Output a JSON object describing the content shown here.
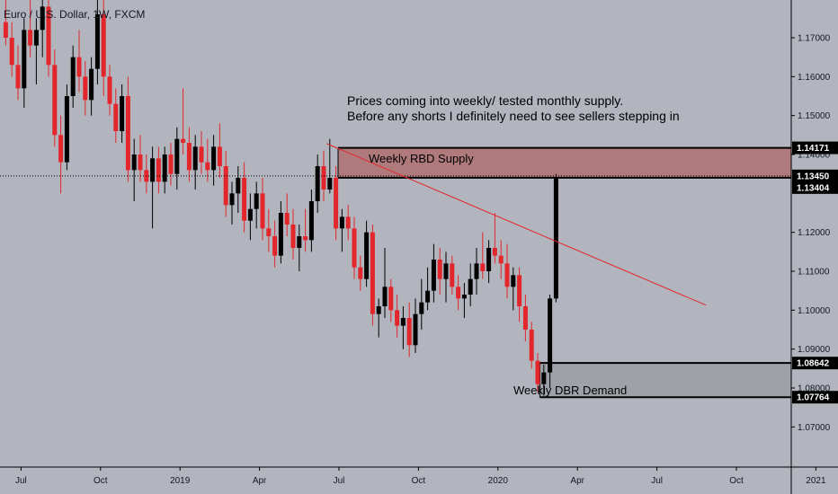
{
  "chart_data": {
    "type": "candlestick",
    "title": "Euro / U.S. Dollar, 1W, FXCM",
    "symbol": "EURUSD",
    "timeframe": "1W",
    "broker": "FXCM",
    "ylim": [
      1.062,
      1.179
    ],
    "y_ticks": [
      {
        "value": 1.17,
        "label": "1.17000"
      },
      {
        "value": 1.16,
        "label": "1.16000"
      },
      {
        "value": 1.15,
        "label": "1.15000"
      },
      {
        "value": 1.14,
        "label": "1.14000"
      },
      {
        "value": 1.12,
        "label": "1.12000"
      },
      {
        "value": 1.11,
        "label": "1.11000"
      },
      {
        "value": 1.1,
        "label": "1.10000"
      },
      {
        "value": 1.09,
        "label": "1.09000"
      },
      {
        "value": 1.08,
        "label": "1.08000"
      },
      {
        "value": 1.07,
        "label": "1.07000"
      }
    ],
    "x_ticks": [
      {
        "index": 3,
        "label": "Jul"
      },
      {
        "index": 16,
        "label": "Oct"
      },
      {
        "index": 29,
        "label": "2019"
      },
      {
        "index": 42,
        "label": "Apr"
      },
      {
        "index": 55,
        "label": "Jul"
      },
      {
        "index": 68,
        "label": "Oct"
      },
      {
        "index": 81,
        "label": "2020"
      },
      {
        "index": 94,
        "label": "Apr"
      },
      {
        "index": 107,
        "label": "Jul"
      },
      {
        "index": 120,
        "label": "Oct"
      },
      {
        "index": 133,
        "label": "2021"
      }
    ],
    "price_tags": [
      {
        "value": 1.14171,
        "label": "1.14171"
      },
      {
        "value": 1.1345,
        "label": "1.13450"
      },
      {
        "value": 1.13404,
        "label": "1.13404"
      },
      {
        "value": 1.08642,
        "label": "1.08642"
      },
      {
        "value": 1.07764,
        "label": "1.07764"
      }
    ],
    "current_price": 1.1345,
    "candles": [
      [
        1.174,
        1.181,
        1.168,
        1.17
      ],
      [
        1.17,
        1.174,
        1.16,
        1.163
      ],
      [
        1.163,
        1.168,
        1.154,
        1.157
      ],
      [
        1.157,
        1.175,
        1.152,
        1.172
      ],
      [
        1.172,
        1.181,
        1.165,
        1.168
      ],
      [
        1.168,
        1.175,
        1.158,
        1.172
      ],
      [
        1.172,
        1.182,
        1.165,
        1.178
      ],
      [
        1.178,
        1.181,
        1.16,
        1.163
      ],
      [
        1.163,
        1.167,
        1.142,
        1.145
      ],
      [
        1.145,
        1.15,
        1.13,
        1.138
      ],
      [
        1.138,
        1.158,
        1.136,
        1.155
      ],
      [
        1.155,
        1.168,
        1.152,
        1.165
      ],
      [
        1.165,
        1.172,
        1.156,
        1.16
      ],
      [
        1.16,
        1.164,
        1.15,
        1.154
      ],
      [
        1.154,
        1.165,
        1.15,
        1.162
      ],
      [
        1.162,
        1.18,
        1.158,
        1.176
      ],
      [
        1.176,
        1.182,
        1.155,
        1.16
      ],
      [
        1.16,
        1.163,
        1.15,
        1.153
      ],
      [
        1.153,
        1.157,
        1.143,
        1.146
      ],
      [
        1.146,
        1.158,
        1.143,
        1.155
      ],
      [
        1.155,
        1.16,
        1.133,
        1.136
      ],
      [
        1.136,
        1.144,
        1.128,
        1.14
      ],
      [
        1.14,
        1.145,
        1.133,
        1.136
      ],
      [
        1.136,
        1.14,
        1.13,
        1.133
      ],
      [
        1.133,
        1.142,
        1.121,
        1.139
      ],
      [
        1.139,
        1.142,
        1.13,
        1.133
      ],
      [
        1.133,
        1.142,
        1.13,
        1.14
      ],
      [
        1.14,
        1.143,
        1.132,
        1.135
      ],
      [
        1.135,
        1.147,
        1.131,
        1.144
      ],
      [
        1.144,
        1.157,
        1.14,
        1.143
      ],
      [
        1.143,
        1.147,
        1.133,
        1.136
      ],
      [
        1.136,
        1.145,
        1.131,
        1.142
      ],
      [
        1.142,
        1.146,
        1.135,
        1.138
      ],
      [
        1.138,
        1.144,
        1.133,
        1.136
      ],
      [
        1.136,
        1.145,
        1.132,
        1.142
      ],
      [
        1.142,
        1.148,
        1.134,
        1.137
      ],
      [
        1.137,
        1.141,
        1.124,
        1.127
      ],
      [
        1.127,
        1.133,
        1.122,
        1.13
      ],
      [
        1.13,
        1.137,
        1.125,
        1.134
      ],
      [
        1.134,
        1.138,
        1.12,
        1.123
      ],
      [
        1.123,
        1.13,
        1.118,
        1.126
      ],
      [
        1.126,
        1.133,
        1.121,
        1.13
      ],
      [
        1.13,
        1.134,
        1.118,
        1.121
      ],
      [
        1.121,
        1.126,
        1.115,
        1.119
      ],
      [
        1.119,
        1.123,
        1.111,
        1.114
      ],
      [
        1.114,
        1.128,
        1.112,
        1.125
      ],
      [
        1.125,
        1.13,
        1.119,
        1.122
      ],
      [
        1.122,
        1.126,
        1.113,
        1.116
      ],
      [
        1.116,
        1.122,
        1.11,
        1.119
      ],
      [
        1.119,
        1.126,
        1.115,
        1.118
      ],
      [
        1.118,
        1.131,
        1.115,
        1.128
      ],
      [
        1.128,
        1.14,
        1.125,
        1.137
      ],
      [
        1.137,
        1.141,
        1.128,
        1.131
      ],
      [
        1.131,
        1.144,
        1.13,
        1.134
      ],
      [
        1.134,
        1.137,
        1.118,
        1.121
      ],
      [
        1.121,
        1.126,
        1.115,
        1.124
      ],
      [
        1.124,
        1.127,
        1.118,
        1.121
      ],
      [
        1.121,
        1.124,
        1.108,
        1.111
      ],
      [
        1.111,
        1.114,
        1.105,
        1.108
      ],
      [
        1.108,
        1.123,
        1.106,
        1.12
      ],
      [
        1.12,
        1.122,
        1.096,
        1.099
      ],
      [
        1.099,
        1.103,
        1.093,
        1.101
      ],
      [
        1.101,
        1.116,
        1.098,
        1.106
      ],
      [
        1.106,
        1.108,
        1.097,
        1.1
      ],
      [
        1.1,
        1.104,
        1.093,
        1.096
      ],
      [
        1.096,
        1.101,
        1.09,
        1.098
      ],
      [
        1.098,
        1.102,
        1.088,
        1.091
      ],
      [
        1.091,
        1.103,
        1.089,
        1.099
      ],
      [
        1.099,
        1.108,
        1.095,
        1.102
      ],
      [
        1.102,
        1.111,
        1.1,
        1.105
      ],
      [
        1.105,
        1.117,
        1.102,
        1.113
      ],
      [
        1.113,
        1.116,
        1.104,
        1.108
      ],
      [
        1.108,
        1.115,
        1.102,
        1.112
      ],
      [
        1.112,
        1.114,
        1.104,
        1.106
      ],
      [
        1.106,
        1.109,
        1.1,
        1.103
      ],
      [
        1.103,
        1.107,
        1.098,
        1.104
      ],
      [
        1.104,
        1.112,
        1.101,
        1.108
      ],
      [
        1.108,
        1.116,
        1.104,
        1.112
      ],
      [
        1.112,
        1.12,
        1.108,
        1.11
      ],
      [
        1.11,
        1.118,
        1.107,
        1.116
      ],
      [
        1.116,
        1.125,
        1.112,
        1.114
      ],
      [
        1.114,
        1.118,
        1.108,
        1.112
      ],
      [
        1.112,
        1.117,
        1.103,
        1.106
      ],
      [
        1.106,
        1.111,
        1.1,
        1.109
      ],
      [
        1.109,
        1.111,
        1.097,
        1.101
      ],
      [
        1.101,
        1.104,
        1.092,
        1.095
      ],
      [
        1.095,
        1.097,
        1.085,
        1.087
      ],
      [
        1.087,
        1.089,
        1.079,
        1.081
      ],
      [
        1.081,
        1.086,
        1.078,
        1.084
      ],
      [
        1.084,
        1.104,
        1.08,
        1.103
      ],
      [
        1.103,
        1.135,
        1.102,
        1.134
      ]
    ],
    "annotations": [
      {
        "id": "supply-zone",
        "kind": "zone",
        "label": "Weekly RBD Supply",
        "y_top": 1.14171,
        "y_bottom": 1.13404,
        "x_start_index": 55
      },
      {
        "id": "demand-zone",
        "kind": "zone",
        "label": "Weekly DBR Demand",
        "y_top": 1.08642,
        "y_bottom": 1.07764,
        "x_start_index": 88
      },
      {
        "id": "trendline",
        "kind": "line",
        "from": {
          "index": 53,
          "value": 1.1428
        },
        "to": {
          "index": 115,
          "value": 1.1013
        }
      },
      {
        "id": "note",
        "kind": "text",
        "lines": [
          "Prices coming into weekly/ tested monthly supply.",
          "Before any shorts I definitely need to see sellers stepping in"
        ]
      }
    ],
    "colors": {
      "background": "#b2b5be",
      "up_candle": "#000000",
      "down_candle": "#e3262b",
      "supply_fill": "#b07a7d",
      "demand_fill": "#9ea1a8",
      "trendline": "#e3262b",
      "price_tag": "#000000",
      "axis_line": "#000000"
    }
  }
}
